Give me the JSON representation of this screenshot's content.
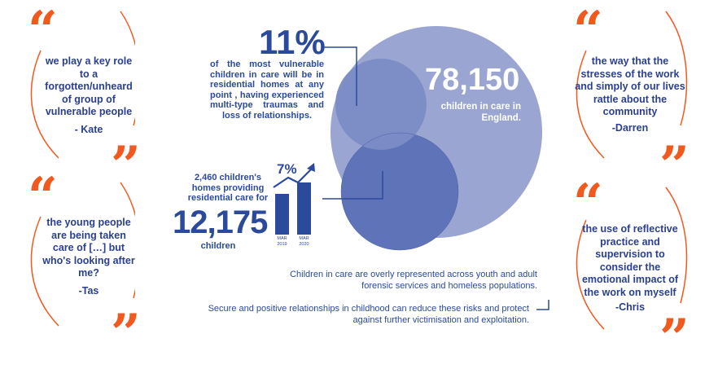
{
  "quotes": [
    {
      "text": "we play a key role to a forgotten/unheard of group of vulnerable people",
      "author": "- Kate"
    },
    {
      "text": "the young people are being taken care of […] but who's looking after me?",
      "author": "-Tas"
    },
    {
      "text": "the way that the stresses of the work and simply of our lives rattle about the community",
      "author": "-Darren"
    },
    {
      "text": "the use of reflective practice and supervision to consider the emotional impact of the work on myself",
      "author": "-Chris"
    }
  ],
  "quote_marks": {
    "open": "“",
    "close": "”"
  },
  "stat_percent": {
    "value": "11%",
    "text": "of the most vulnerable children in care will be in residential homes at any point , having experienced multi-type traumas and loss of relationships."
  },
  "stat_care": {
    "value": "78,150",
    "text": "children in care in England."
  },
  "stat_homes": {
    "text": "2,460 children's homes providing residential care for",
    "value": "12,175",
    "unit": "children",
    "growth": "7%",
    "bar_levels": [
      0.78,
      1.0
    ],
    "bar_labels": [
      [
        "MAR",
        "2019"
      ],
      [
        "MAR",
        "2020"
      ]
    ]
  },
  "bottom": {
    "line1": "Children in care are overly represented across youth and adult forensic services and homeless populations.",
    "line2": "Secure and positive relationships in childhood can reduce these risks and protect against further victimisation and exploitation."
  },
  "colors": {
    "accent": "#f2591e",
    "primary": "#2b4a9c",
    "circle_large": "#9aa6d1",
    "circle_mid": "#7b8cc6",
    "circle_small": "#5f73b8"
  }
}
